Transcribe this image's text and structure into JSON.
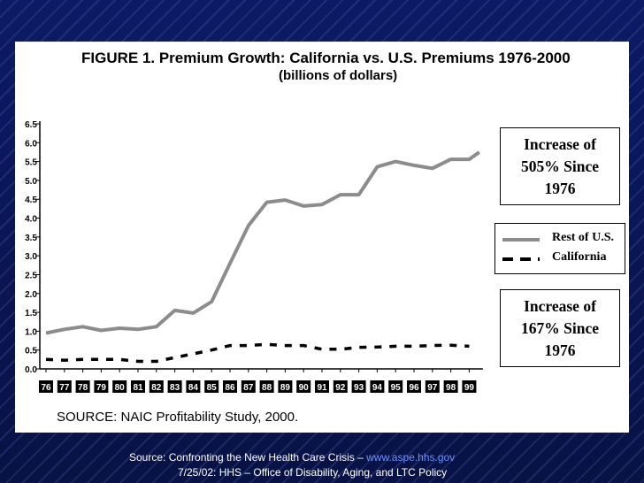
{
  "chart_data": {
    "type": "line",
    "title": "FIGURE 1. Premium Growth: California vs. U.S. Premiums 1976-2000",
    "subtitle": "(billions of dollars)",
    "xlabel": "",
    "ylabel": "",
    "categories": [
      "76",
      "77",
      "78",
      "79",
      "80",
      "81",
      "82",
      "83",
      "84",
      "85",
      "86",
      "87",
      "88",
      "89",
      "90",
      "91",
      "92",
      "93",
      "94",
      "95",
      "96",
      "97",
      "98",
      "99"
    ],
    "x_extra_end": 0.55,
    "yticks": [
      "0.0",
      "0.5",
      "1.0",
      "1.5",
      "2.0",
      "2.5",
      "3.0",
      "3.5",
      "4.0",
      "4.5",
      "5.0",
      "5.5",
      "6.0",
      "6.5"
    ],
    "ylim": [
      0,
      6.5
    ],
    "series": [
      {
        "name": "Rest of U.S.",
        "style": "solid",
        "color": "#8c8c8c",
        "values": [
          0.95,
          1.05,
          1.12,
          1.02,
          1.08,
          1.05,
          1.12,
          1.55,
          1.48,
          1.78,
          2.8,
          3.8,
          4.42,
          4.48,
          4.32,
          4.36,
          4.62,
          4.62,
          5.36,
          5.5,
          5.4,
          5.32,
          5.56,
          5.56
        ],
        "end_value": 5.75
      },
      {
        "name": "California",
        "style": "dashed",
        "color": "#000000",
        "values": [
          0.25,
          0.23,
          0.25,
          0.25,
          0.25,
          0.2,
          0.2,
          0.3,
          0.4,
          0.5,
          0.62,
          0.62,
          0.65,
          0.62,
          0.62,
          0.52,
          0.52,
          0.57,
          0.58,
          0.6,
          0.6,
          0.62,
          0.63,
          0.6
        ]
      }
    ],
    "annotations": [
      "Increase of 505% Since 1976",
      "Increase of 167% Since 1976"
    ],
    "legend_position": "right",
    "grid": false
  },
  "annotation_us": {
    "line1": "Increase of",
    "line2": "505% Since",
    "line3": "1976"
  },
  "annotation_ca": {
    "line1": "Increase of",
    "line2": "167% Since",
    "line3": "1976"
  },
  "legend": {
    "us_label": "Rest of U.S.",
    "ca_label": "California"
  },
  "source_note": "SOURCE: NAIC Profitability Study, 2000.",
  "footer": {
    "line1_prefix": "Source:  Confronting the New Health Care Crisis – ",
    "line1_link": "www.aspe.hhs.gov",
    "line2": "7/25/02: HHS – Office of Disability, Aging, and LTC Policy"
  }
}
